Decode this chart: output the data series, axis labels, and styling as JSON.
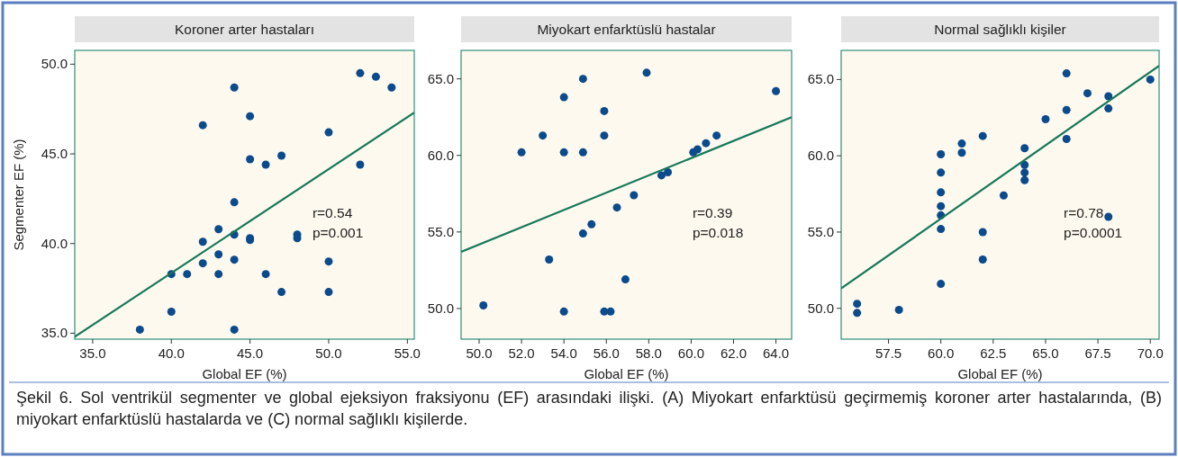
{
  "chart_data": [
    {
      "type": "scatter",
      "title": "Koroner arter hastaları",
      "xlabel": "Global EF (%)",
      "ylabel": "Segmenter EF (%)",
      "xlim": [
        33.86,
        55.44
      ],
      "ylim": [
        34.67,
        50.77
      ],
      "xticks": [
        {
          "value": 35,
          "label": "35.0"
        },
        {
          "value": 40,
          "label": "40.0"
        },
        {
          "value": 45,
          "label": "45.0"
        },
        {
          "value": 50,
          "label": "50.0"
        },
        {
          "value": 55,
          "label": "55.0"
        }
      ],
      "yticks": [
        {
          "value": 35,
          "label": "35.0"
        },
        {
          "value": 40,
          "label": "40.0"
        },
        {
          "value": 45,
          "label": "45.0"
        },
        {
          "value": 50,
          "label": "50.0"
        }
      ],
      "grid": false,
      "series": [
        {
          "marker": "circle",
          "color": "#0b4a8b",
          "x": [
            44,
            52,
            53,
            54,
            45,
            42,
            50,
            45,
            46,
            47,
            52,
            44,
            43,
            44,
            42,
            45,
            45,
            48,
            48,
            43,
            44,
            42,
            50,
            40,
            41,
            43,
            46,
            47,
            50,
            40,
            38,
            44
          ],
          "values": [
            48.7,
            49.5,
            49.3,
            48.7,
            47.1,
            46.6,
            46.2,
            44.7,
            44.4,
            44.9,
            44.4,
            42.3,
            40.8,
            40.5,
            40.1,
            40.3,
            40.2,
            40.5,
            40.3,
            39.4,
            39.1,
            38.9,
            39.0,
            38.3,
            38.3,
            38.3,
            38.3,
            37.3,
            37.3,
            36.2,
            35.2,
            35.2
          ]
        },
        {
          "type": "line",
          "color": "#16785a",
          "x": [
            33.86,
            55.44
          ],
          "values": [
            34.8,
            47.3
          ],
          "line_style": "solid"
        }
      ],
      "annotations": [
        "r=0.54",
        "p=0.001",
        "Şekil 6. Sol ventrikül segmenter ve global ejeksiyon fraksiyonu (EF) arasındaki ilişki. (A) Miyokart enfarktüsü geçirmemiş koroner arter hastalarında, (B) miyokart enfarktüslü hastalarda ve (C) normal sağlıklı kişilerde."
      ]
    },
    {
      "type": "scatter",
      "title": "Miyokart enfarktüslü hastalar",
      "xlabel": "Global EF (%)",
      "xlim": [
        49.15,
        64.74
      ],
      "ylim": [
        48.0,
        66.86
      ],
      "xticks": [
        {
          "value": 50,
          "label": "50.0"
        },
        {
          "value": 52,
          "label": "52.0"
        },
        {
          "value": 54,
          "label": "54.0"
        },
        {
          "value": 56,
          "label": "56.0"
        },
        {
          "value": 58,
          "label": "58.0"
        },
        {
          "value": 60,
          "label": "60.0"
        },
        {
          "value": 62,
          "label": "62.0"
        },
        {
          "value": 64,
          "label": "64.0"
        }
      ],
      "yticks": [
        {
          "value": 50,
          "label": "50.0"
        },
        {
          "value": 55,
          "label": "55.0"
        },
        {
          "value": 60,
          "label": "60.0"
        },
        {
          "value": 65,
          "label": "65.0"
        }
      ],
      "grid": false,
      "series": [
        {
          "marker": "circle",
          "color": "#0b4a8b",
          "x": [
            50.2,
            52.0,
            53.0,
            53.3,
            54.0,
            54.0,
            54.0,
            54.9,
            54.9,
            54.9,
            55.3,
            55.9,
            55.9,
            55.9,
            56.2,
            56.5,
            56.9,
            57.3,
            57.9,
            58.6,
            58.9,
            60.1,
            60.3,
            60.7,
            61.2,
            64.0
          ],
          "values": [
            50.2,
            60.2,
            61.3,
            53.2,
            63.8,
            60.2,
            49.8,
            65.0,
            60.2,
            54.9,
            55.5,
            62.9,
            61.3,
            49.8,
            49.8,
            56.6,
            51.9,
            57.4,
            65.4,
            58.7,
            58.9,
            60.2,
            60.4,
            60.8,
            61.3,
            64.2
          ]
        },
        {
          "type": "line",
          "color": "#16785a",
          "x": [
            49.15,
            64.74
          ],
          "values": [
            53.7,
            62.5
          ],
          "line_style": "solid"
        }
      ],
      "annotations": [
        "r=0.39",
        "p=0.018"
      ]
    },
    {
      "type": "scatter",
      "title": "Normal sağlıklı kişiler",
      "xlabel": "Global EF (%)",
      "xlim": [
        55.24,
        70.42
      ],
      "ylim": [
        47.98,
        66.91
      ],
      "xticks": [
        57.5,
        {
          "value": 60,
          "label": "60.0"
        },
        62.5,
        {
          "value": 65,
          "label": "65.0"
        },
        67.5,
        {
          "value": 70,
          "label": "70.0"
        }
      ],
      "yticks": [
        {
          "value": 50,
          "label": "50.0"
        },
        {
          "value": 55,
          "label": "55.0"
        },
        {
          "value": 60,
          "label": "60.0"
        },
        {
          "value": 65,
          "label": "65.0"
        }
      ],
      "grid": false,
      "series": [
        {
          "marker": "circle",
          "color": "#0b4a8b",
          "x": [
            56.0,
            56.0,
            58.0,
            60,
            60,
            60,
            60,
            60,
            60,
            60,
            61,
            61,
            62,
            62,
            62,
            63,
            64,
            64,
            64,
            64,
            65,
            66,
            66,
            66,
            67,
            68,
            68,
            68,
            70
          ],
          "values": [
            50.3,
            49.7,
            49.9,
            60.1,
            58.9,
            57.6,
            56.7,
            56.1,
            55.2,
            51.6,
            60.8,
            60.2,
            61.3,
            55.0,
            53.2,
            57.4,
            60.5,
            59.4,
            58.9,
            58.4,
            62.4,
            65.4,
            63.0,
            61.1,
            64.1,
            63.9,
            63.1,
            56.0,
            65.0
          ]
        },
        {
          "type": "line",
          "color": "#16785a",
          "x": [
            55.24,
            70.42
          ],
          "values": [
            51.3,
            65.9
          ],
          "line_style": "solid"
        }
      ],
      "annotations": [
        "r=0.78",
        "p=0.0001"
      ]
    }
  ]
}
